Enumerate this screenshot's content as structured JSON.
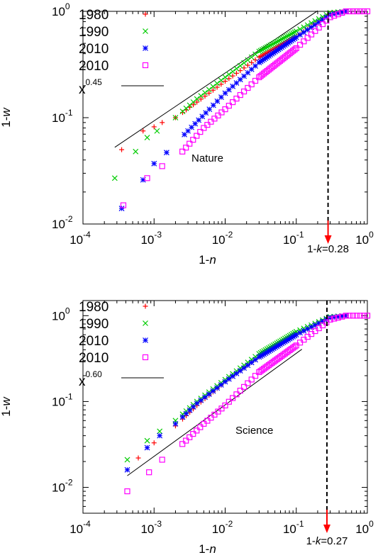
{
  "chart_data": [
    {
      "type": "scatter",
      "annotation": "Nature",
      "xlabel": "1-n",
      "ylabel": "1-w",
      "x_scale": "log",
      "y_scale": "log",
      "xlim": [
        0.0001,
        1
      ],
      "ylim": [
        0.01,
        1
      ],
      "x_ticks": [
        {
          "base": "10",
          "exp": "-4",
          "value": 0.0001
        },
        {
          "base": "10",
          "exp": "-3",
          "value": 0.001
        },
        {
          "base": "10",
          "exp": "-2",
          "value": 0.01
        },
        {
          "base": "10",
          "exp": "-1",
          "value": 0.1
        },
        {
          "base": "10",
          "exp": "0",
          "value": 1
        }
      ],
      "y_ticks": [
        {
          "base": "10",
          "exp": "-2",
          "value": 0.01
        },
        {
          "base": "10",
          "exp": "-1",
          "value": 0.1
        },
        {
          "base": "10",
          "exp": "0",
          "value": 1
        }
      ],
      "legend_position": "top-left",
      "series": [
        {
          "name": "1980",
          "marker": "plus",
          "color": "#ff0000",
          "points": [
            [
              0.00035,
              0.05
            ],
            [
              0.0007,
              0.075
            ],
            [
              0.001,
              0.082
            ],
            [
              0.0013,
              0.09
            ],
            [
              0.002,
              0.1
            ],
            [
              0.004,
              0.14
            ],
            [
              0.01,
              0.22
            ],
            [
              0.03,
              0.37
            ],
            [
              0.1,
              0.58
            ],
            [
              0.3,
              0.95
            ],
            [
              0.5,
              1.0
            ]
          ]
        },
        {
          "name": "1990",
          "marker": "x",
          "color": "#00cc00",
          "points": [
            [
              0.00028,
              0.027
            ],
            [
              0.00055,
              0.048
            ],
            [
              0.0008,
              0.065
            ],
            [
              0.0011,
              0.075
            ],
            [
              0.002,
              0.1
            ],
            [
              0.004,
              0.15
            ],
            [
              0.01,
              0.24
            ],
            [
              0.03,
              0.42
            ],
            [
              0.1,
              0.65
            ],
            [
              0.3,
              0.97
            ],
            [
              0.5,
              1.0
            ]
          ]
        },
        {
          "name": "2010",
          "marker": "star",
          "color": "#0000ff",
          "points": [
            [
              0.00035,
              0.014
            ],
            [
              0.0007,
              0.026
            ],
            [
              0.001,
              0.037
            ],
            [
              0.0015,
              0.047
            ],
            [
              0.003,
              0.075
            ],
            [
              0.006,
              0.12
            ],
            [
              0.01,
              0.17
            ],
            [
              0.03,
              0.33
            ],
            [
              0.1,
              0.57
            ],
            [
              0.3,
              0.93
            ],
            [
              0.5,
              1.0
            ]
          ]
        },
        {
          "name": "2010",
          "marker": "square",
          "color": "#ff00ff",
          "points": [
            [
              0.00037,
              0.015
            ],
            [
              0.0008,
              0.027
            ],
            [
              0.0013,
              0.035
            ],
            [
              0.0025,
              0.048
            ],
            [
              0.005,
              0.08
            ],
            [
              0.01,
              0.12
            ],
            [
              0.03,
              0.24
            ],
            [
              0.1,
              0.45
            ],
            [
              0.3,
              0.88
            ],
            [
              0.5,
              1.0
            ],
            [
              1.0,
              1.0
            ]
          ]
        }
      ],
      "reference_line": {
        "label_base": "x",
        "label_exp": "0.45",
        "exponent": 0.45,
        "x_range": [
          0.00028,
          0.2
        ],
        "amplitude": 2.09
      },
      "cutoff": {
        "label_prefix": "1-",
        "label_var": "k",
        "label_value": "=0.28",
        "x": 0.28,
        "arrow_color": "#ff0000"
      }
    },
    {
      "type": "scatter",
      "annotation": "Science",
      "xlabel": "1-n",
      "ylabel": "1-w",
      "x_scale": "log",
      "y_scale": "log",
      "xlim": [
        0.0001,
        1
      ],
      "ylim": [
        0.005,
        1.5
      ],
      "x_ticks": [
        {
          "base": "10",
          "exp": "-4",
          "value": 0.0001
        },
        {
          "base": "10",
          "exp": "-3",
          "value": 0.001
        },
        {
          "base": "10",
          "exp": "-2",
          "value": 0.01
        },
        {
          "base": "10",
          "exp": "-1",
          "value": 0.1
        },
        {
          "base": "10",
          "exp": "0",
          "value": 1
        }
      ],
      "y_ticks": [
        {
          "base": "10",
          "exp": "-2",
          "value": 0.01
        },
        {
          "base": "10",
          "exp": "-1",
          "value": 0.1
        },
        {
          "base": "10",
          "exp": "0",
          "value": 1
        }
      ],
      "legend_position": "top-left",
      "series": [
        {
          "name": "1980",
          "marker": "plus",
          "color": "#ff0000",
          "points": [
            [
              0.0006,
              0.022
            ],
            [
              0.001,
              0.033
            ],
            [
              0.002,
              0.052
            ],
            [
              0.004,
              0.09
            ],
            [
              0.01,
              0.17
            ],
            [
              0.03,
              0.33
            ],
            [
              0.1,
              0.6
            ],
            [
              0.3,
              0.95
            ],
            [
              0.5,
              1.0
            ]
          ]
        },
        {
          "name": "1990",
          "marker": "x",
          "color": "#00cc00",
          "points": [
            [
              0.00042,
              0.021
            ],
            [
              0.0008,
              0.035
            ],
            [
              0.0012,
              0.045
            ],
            [
              0.002,
              0.06
            ],
            [
              0.004,
              0.1
            ],
            [
              0.01,
              0.18
            ],
            [
              0.03,
              0.36
            ],
            [
              0.1,
              0.65
            ],
            [
              0.3,
              0.97
            ],
            [
              0.5,
              1.0
            ]
          ]
        },
        {
          "name": "2010",
          "marker": "star",
          "color": "#0000ff",
          "points": [
            [
              0.00042,
              0.016
            ],
            [
              0.0008,
              0.029
            ],
            [
              0.0012,
              0.04
            ],
            [
              0.002,
              0.055
            ],
            [
              0.004,
              0.095
            ],
            [
              0.01,
              0.17
            ],
            [
              0.03,
              0.33
            ],
            [
              0.1,
              0.6
            ],
            [
              0.3,
              0.95
            ],
            [
              0.5,
              1.0
            ]
          ]
        },
        {
          "name": "2010",
          "marker": "square",
          "color": "#ff00ff",
          "points": [
            [
              0.00042,
              0.009
            ],
            [
              0.00085,
              0.015
            ],
            [
              0.0013,
              0.021
            ],
            [
              0.0025,
              0.032
            ],
            [
              0.005,
              0.055
            ],
            [
              0.01,
              0.09
            ],
            [
              0.03,
              0.22
            ],
            [
              0.1,
              0.45
            ],
            [
              0.3,
              0.9
            ],
            [
              0.5,
              1.0
            ],
            [
              1.0,
              1.0
            ]
          ]
        }
      ],
      "reference_line": {
        "label_base": "x",
        "label_exp": "0.60",
        "exponent": 0.6,
        "x_range": [
          0.00042,
          0.12
        ],
        "amplitude": 1.45
      },
      "cutoff": {
        "label_prefix": "1-",
        "label_var": "k",
        "label_value": "=0.27",
        "x": 0.27,
        "arrow_color": "#ff0000"
      }
    }
  ]
}
